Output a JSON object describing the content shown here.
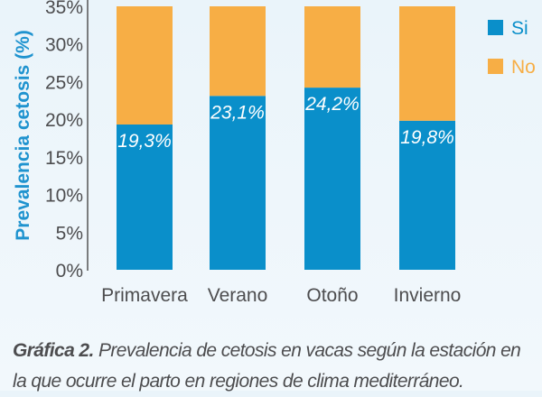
{
  "chart_data": {
    "type": "bar",
    "stacked": true,
    "categories": [
      "Primavera",
      "Verano",
      "Otoño",
      "Invierno"
    ],
    "series": [
      {
        "name": "Si",
        "values": [
          19.3,
          23.1,
          24.2,
          19.8
        ],
        "color": "#0a8fca",
        "labels": [
          "19,3%",
          "23,1%",
          "24,2%",
          "19,8%"
        ]
      },
      {
        "name": "No",
        "values": [
          15.7,
          11.9,
          10.8,
          15.2
        ],
        "color": "#f7ae45"
      }
    ],
    "ylabel": "Prevalencia cetosis (%)",
    "xlabel": "",
    "ylim": [
      0,
      35
    ],
    "yticks": [
      0,
      5,
      10,
      15,
      20,
      25,
      30,
      35
    ],
    "ytick_labels": [
      "0%",
      "5%",
      "10%",
      "15%",
      "20%",
      "25%",
      "30%",
      "35%"
    ],
    "legend_position": "top-right",
    "grid": false
  },
  "caption": {
    "label": "Gráfica 2.",
    "text": " Prevalencia de cetosis en vacas según la estación en la que ocurre el parto en regiones de clima mediterráneo."
  }
}
